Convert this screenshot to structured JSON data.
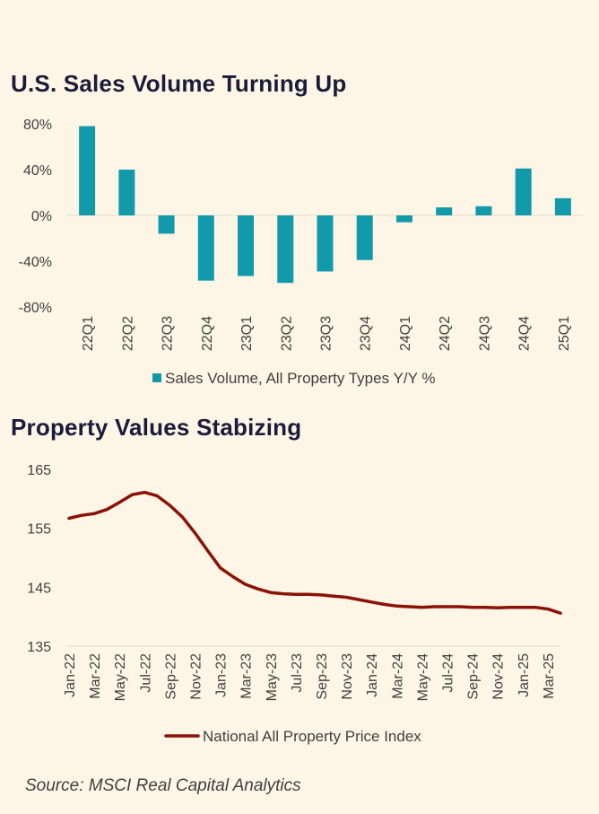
{
  "chart_data": [
    {
      "type": "bar",
      "title": "U.S. Sales Volume Turning Up",
      "categories": [
        "22Q1",
        "22Q2",
        "22Q3",
        "22Q4",
        "23Q1",
        "23Q2",
        "23Q3",
        "23Q4",
        "24Q1",
        "24Q2",
        "24Q3",
        "24Q4",
        "25Q1"
      ],
      "series": [
        {
          "name": "Sales Volume, All Property Types Y/Y %",
          "values": [
            78,
            40,
            -16,
            -57,
            -53,
            -59,
            -49,
            -39,
            -6,
            7,
            8,
            41,
            15
          ]
        }
      ],
      "ylim": [
        -80,
        80
      ],
      "yticks": [
        80,
        40,
        0,
        -40,
        -80
      ],
      "ytick_labels": [
        "80%",
        "40%",
        "0%",
        "-40%",
        "-80%"
      ],
      "legend": "bottom",
      "color": "#1299aa"
    },
    {
      "type": "line",
      "title": "Property Values Stabizing",
      "x": [
        "Jan-22",
        "Feb-22",
        "Mar-22",
        "Apr-22",
        "May-22",
        "Jun-22",
        "Jul-22",
        "Aug-22",
        "Sep-22",
        "Oct-22",
        "Nov-22",
        "Dec-22",
        "Jan-23",
        "Feb-23",
        "Mar-23",
        "Apr-23",
        "May-23",
        "Jun-23",
        "Jul-23",
        "Aug-23",
        "Sep-23",
        "Oct-23",
        "Nov-23",
        "Dec-23",
        "Jan-24",
        "Feb-24",
        "Mar-24",
        "Apr-24",
        "May-24",
        "Jun-24",
        "Jul-24",
        "Aug-24",
        "Sep-24",
        "Oct-24",
        "Nov-24",
        "Dec-24",
        "Jan-25",
        "Feb-25",
        "Mar-25",
        "Apr-25"
      ],
      "x_tick_labels": [
        "Jan-22",
        "Mar-22",
        "May-22",
        "Jul-22",
        "Sep-22",
        "Nov-22",
        "Jan-23",
        "Mar-23",
        "May-23",
        "Jul-23",
        "Sep-23",
        "Nov-23",
        "Jan-24",
        "Mar-24",
        "May-24",
        "Jul-24",
        "Sep-24",
        "Nov-24",
        "Jan-25",
        "Mar-25"
      ],
      "series": [
        {
          "name": "National All Property Price Index",
          "values": [
            156.7,
            157.2,
            157.5,
            158.2,
            159.4,
            160.7,
            161.1,
            160.5,
            158.9,
            156.9,
            154.2,
            151.2,
            148.3,
            146.8,
            145.5,
            144.7,
            144.1,
            143.9,
            143.8,
            143.8,
            143.7,
            143.5,
            143.3,
            142.9,
            142.5,
            142.1,
            141.8,
            141.7,
            141.6,
            141.7,
            141.7,
            141.7,
            141.6,
            141.6,
            141.5,
            141.6,
            141.6,
            141.6,
            141.3,
            140.6
          ]
        }
      ],
      "ylim": [
        135,
        165
      ],
      "yticks": [
        165,
        155,
        145,
        135
      ],
      "legend": "bottom",
      "color": "#8b1206"
    }
  ],
  "source": "Source: MSCI Real Capital Analytics"
}
